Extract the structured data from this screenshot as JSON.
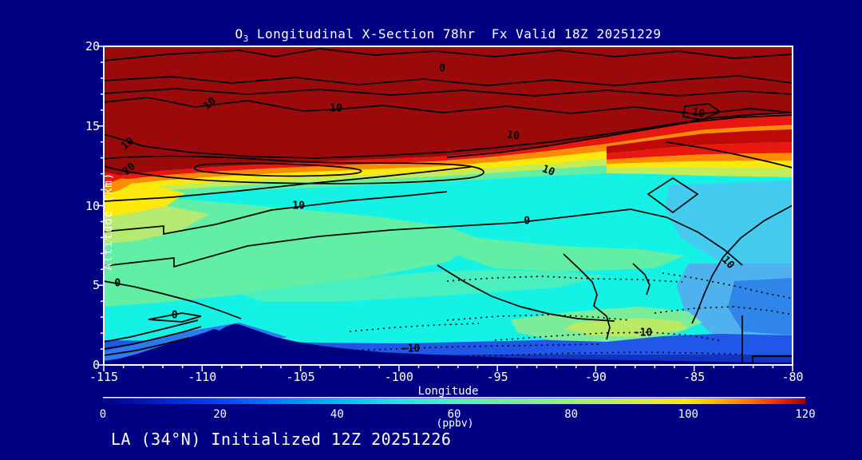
{
  "app": {
    "background_color": "#000082",
    "text_color": "#ffffff"
  },
  "title": {
    "prefix": "O",
    "subscript": "3",
    "rest": " Longitudinal X-Section 78hr  Fx Valid 18Z 20251229"
  },
  "footer": {
    "text": "LA (34°N) Initialized 12Z 20251226"
  },
  "chart_data": {
    "type": "heatmap",
    "subtype": "filled_contour_longitudinal_cross_section",
    "title": "O3 Longitudinal X-Section 78hr  Fx Valid 18Z 20251229",
    "species": "O3",
    "forecast_hour": "78hr",
    "valid_time": "18Z 20251229",
    "initialized": "12Z 20251226",
    "station": "LA (34°N)",
    "xlabel": "Longitude",
    "ylabel": "Altitude (km)",
    "xlim": [
      -115,
      -80
    ],
    "ylim": [
      0,
      20
    ],
    "x_major_ticks": [
      -115,
      -110,
      -105,
      -100,
      -95,
      -90,
      -85,
      -80
    ],
    "x_minor_step": 1,
    "y_major_ticks": [
      0,
      5,
      10,
      15,
      20
    ],
    "y_minor_step": 1,
    "grid": false,
    "colorbar": {
      "units_label": "(ppbv)",
      "min": 0,
      "max": 120,
      "ticks": [
        0,
        20,
        40,
        60,
        80,
        100,
        120
      ],
      "gradient_hint": [
        "#000085",
        "#0048FF",
        "#00B4F8",
        "#2ADFE8",
        "#70EFA0",
        "#C8EC58",
        "#FCE410",
        "#FF7400",
        "#F03008",
        "#A00000"
      ]
    },
    "overlay_contour_levels_labeled": [
      -10,
      0,
      10,
      20
    ],
    "overlay_contour_style": {
      "negative": "dotted",
      "nonnegative": "solid",
      "color": "#000000"
    },
    "contour_labels": [
      {
        "text": "0",
        "lon": -97.8,
        "alt": 18.6,
        "angle": 0
      },
      {
        "text": "10",
        "lon": -109.6,
        "alt": 16.4,
        "angle": -38
      },
      {
        "text": "10",
        "lon": -103.2,
        "alt": 16.1,
        "angle": 0
      },
      {
        "text": "10",
        "lon": -113.8,
        "alt": 13.9,
        "angle": -40
      },
      {
        "text": "20",
        "lon": -113.7,
        "alt": 12.3,
        "angle": -40
      },
      {
        "text": "10",
        "lon": -94.2,
        "alt": 14.4,
        "angle": 8
      },
      {
        "text": "10",
        "lon": -84.8,
        "alt": 15.8,
        "angle": 12
      },
      {
        "text": "10",
        "lon": -92.4,
        "alt": 12.2,
        "angle": 22
      },
      {
        "text": "10",
        "lon": -105.1,
        "alt": 10.0,
        "angle": 0
      },
      {
        "text": "0",
        "lon": -93.5,
        "alt": 9.0,
        "angle": 0
      },
      {
        "text": "10",
        "lon": -83.3,
        "alt": 6.4,
        "angle": 48
      },
      {
        "text": "0",
        "lon": -114.3,
        "alt": 5.1,
        "angle": 0
      },
      {
        "text": "0",
        "lon": -111.4,
        "alt": 3.1,
        "angle": 0
      },
      {
        "text": "-10",
        "lon": -99.4,
        "alt": 1.0,
        "angle": 0
      },
      {
        "text": "-10",
        "lon": -87.6,
        "alt": 2.0,
        "angle": 0
      }
    ],
    "field_grid": {
      "note": "approximate ozone mixing ratio read from fill colors; values >120 saturated at colormap max; null = below terrain",
      "longitudes": [
        -115,
        -110,
        -105,
        -100,
        -95,
        -90,
        -85,
        -80
      ],
      "altitudes_km": [
        0,
        1,
        2,
        3,
        5,
        8,
        10,
        12,
        14,
        16,
        18,
        20
      ],
      "ozone_ppbv": [
        [
          35,
          null,
          30,
          25,
          25,
          25,
          28,
          30
        ],
        [
          45,
          null,
          35,
          30,
          30,
          32,
          38,
          40
        ],
        [
          50,
          40,
          45,
          40,
          40,
          55,
          45,
          42
        ],
        [
          55,
          60,
          50,
          45,
          50,
          65,
          48,
          45
        ],
        [
          62,
          60,
          55,
          52,
          55,
          58,
          52,
          50
        ],
        [
          68,
          65,
          60,
          55,
          55,
          52,
          50,
          48
        ],
        [
          95,
          72,
          62,
          58,
          55,
          52,
          50,
          52
        ],
        [
          120,
          100,
          85,
          75,
          65,
          58,
          55,
          60
        ],
        [
          125,
          125,
          125,
          120,
          110,
          100,
          95,
          105
        ],
        [
          125,
          125,
          125,
          125,
          125,
          125,
          120,
          115
        ],
        [
          125,
          125,
          125,
          125,
          125,
          125,
          125,
          125
        ],
        [
          125,
          125,
          125,
          125,
          125,
          125,
          125,
          125
        ]
      ]
    },
    "terrain_profile_km": [
      {
        "lon": -115,
        "alt": 0.2
      },
      {
        "lon": -113,
        "alt": 0.7
      },
      {
        "lon": -111,
        "alt": 1.5
      },
      {
        "lon": -109.5,
        "alt": 2.2
      },
      {
        "lon": -108.2,
        "alt": 2.6
      },
      {
        "lon": -107,
        "alt": 1.9
      },
      {
        "lon": -105,
        "alt": 1.1
      },
      {
        "lon": -103,
        "alt": 0.85
      },
      {
        "lon": -100,
        "alt": 0.65
      },
      {
        "lon": -95,
        "alt": 0.45
      },
      {
        "lon": -90,
        "alt": 0.3
      },
      {
        "lon": -85,
        "alt": 0.2
      },
      {
        "lon": -80,
        "alt": 0.15
      }
    ]
  }
}
